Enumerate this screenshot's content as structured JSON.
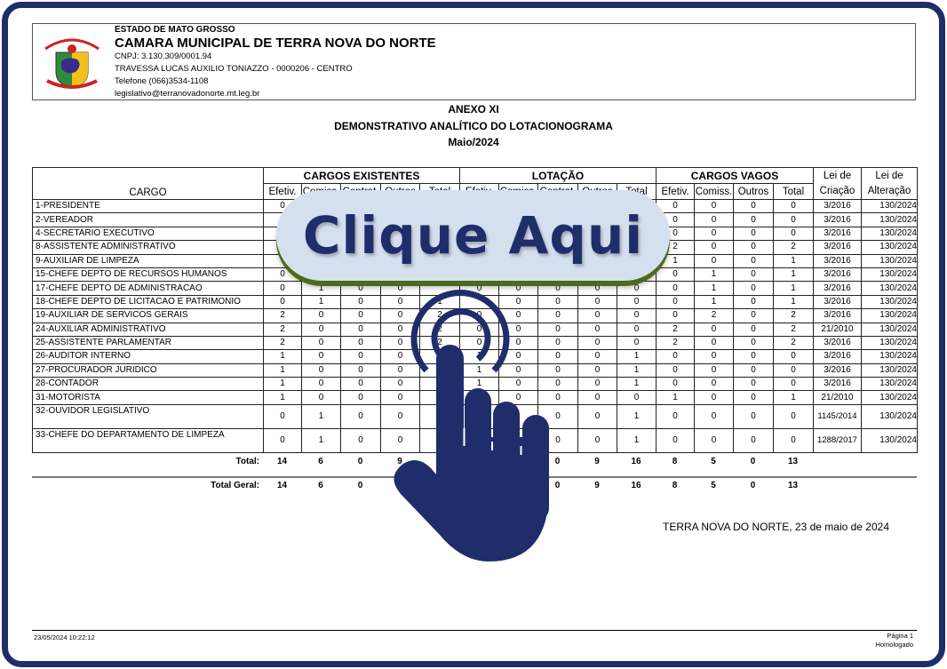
{
  "header": {
    "state": "ESTADO DE MATO GROSSO",
    "org": "CAMARA MUNICIPAL DE TERRA NOVA DO NORTE",
    "cnpj": "CNPJ:    3.130.309/0001.94",
    "address": "TRAVESSA LUCAS AUXILIO TONIAZZO - 0000206 - CENTRO",
    "phone": "Telefone     (066)3534-1108",
    "email": "legislativo@terranovadonorte.mt.leg.br"
  },
  "titles": {
    "annex": "ANEXO XI",
    "report": "DEMONSTRATIVO ANALÍTICO DO LOTACIONOGRAMA",
    "period": "Maio/2024"
  },
  "table": {
    "cargo_header": "CARGO",
    "groups": [
      "CARGOS EXISTENTES",
      "LOTAÇÃO",
      "CARGOS VAGOS"
    ],
    "lei_criacao": "Lei de Criação",
    "lei_alteracao": "Lei de Alteração",
    "sub_existentes": [
      "Efetiv.",
      "Comiss.",
      "Contrat.",
      "Outros",
      "Total"
    ],
    "sub_lotacao": [
      "Efetiv.",
      "Comiss.",
      "Contrat.",
      "Outros",
      "Total"
    ],
    "sub_vagos": [
      "Efetiv.",
      "Comiss.",
      "Outros",
      "Total"
    ],
    "rows": [
      {
        "cargo": "1-PRESIDENTE",
        "v": [
          "0",
          "",
          "",
          "",
          "",
          "",
          "",
          "",
          "",
          "",
          "0",
          "0",
          "0",
          "0",
          "3/2016",
          "130/2024"
        ]
      },
      {
        "cargo": "2-VEREADOR",
        "v": [
          "",
          "",
          "",
          "",
          "",
          "",
          "",
          "",
          "",
          "",
          "0",
          "0",
          "0",
          "0",
          "3/2016",
          "130/2024"
        ]
      },
      {
        "cargo": "4-SECRETARIO EXECUTIVO",
        "v": [
          "",
          "",
          "",
          "",
          "",
          "",
          "",
          "",
          "",
          "",
          "0",
          "0",
          "0",
          "0",
          "3/2016",
          "130/2024"
        ]
      },
      {
        "cargo": "8-ASSISTENTE  ADMINISTRATIVO",
        "v": [
          "",
          "",
          "",
          "",
          "",
          "",
          "",
          "",
          "",
          "",
          "2",
          "0",
          "0",
          "2",
          "3/2016",
          "130/2024"
        ]
      },
      {
        "cargo": "9-AUXILIAR DE LIMPEZA",
        "v": [
          "",
          "",
          "",
          "",
          "",
          "",
          "",
          "",
          "",
          "",
          "1",
          "0",
          "0",
          "1",
          "3/2016",
          "130/2024"
        ]
      },
      {
        "cargo": "15-CHEFE DEPTO DE RECURSOS HUMANOS",
        "v": [
          "0",
          "",
          "",
          "",
          "",
          "",
          "",
          "",
          "",
          "",
          "0",
          "1",
          "0",
          "1",
          "3/2016",
          "130/2024"
        ]
      },
      {
        "cargo": "17-CHEFE DEPTO DE ADMINISTRACAO",
        "v": [
          "0",
          "1",
          "0",
          "0",
          "",
          "0",
          "0",
          "0",
          "0",
          "0",
          "0",
          "1",
          "0",
          "1",
          "3/2016",
          "130/2024"
        ]
      },
      {
        "cargo": "18-CHEFE DEPTO DE LICITACAO E PATRIMONIO",
        "v": [
          "0",
          "1",
          "0",
          "0",
          "1",
          "",
          "0",
          "0",
          "0",
          "0",
          "0",
          "1",
          "0",
          "1",
          "3/2016",
          "130/2024"
        ]
      },
      {
        "cargo": "19-AUXILIAR DE SERVICOS GERAIS",
        "v": [
          "2",
          "0",
          "0",
          "0",
          "2",
          "0",
          "0",
          "0",
          "0",
          "0",
          "0",
          "2",
          "0",
          "2",
          "3/2016",
          "130/2024"
        ]
      },
      {
        "cargo": "24-AUXILIAR ADMINISTRATIVO",
        "v": [
          "2",
          "0",
          "0",
          "0",
          "2",
          "0",
          "0",
          "0",
          "0",
          "0",
          "2",
          "0",
          "0",
          "2",
          "21/2010",
          "130/2024"
        ]
      },
      {
        "cargo": "25-ASSISTENTE PARLAMENTAR",
        "v": [
          "2",
          "0",
          "0",
          "0",
          "2",
          "0",
          "0",
          "0",
          "0",
          "0",
          "2",
          "0",
          "0",
          "2",
          "3/2016",
          "130/2024"
        ]
      },
      {
        "cargo": "26-AUDITOR INTERNO",
        "v": [
          "1",
          "0",
          "0",
          "0",
          "",
          "1",
          "0",
          "0",
          "0",
          "1",
          "0",
          "0",
          "0",
          "0",
          "3/2016",
          "130/2024"
        ]
      },
      {
        "cargo": "27-PROCURADOR JURIDICO",
        "v": [
          "1",
          "0",
          "0",
          "0",
          "",
          "1",
          "0",
          "0",
          "0",
          "1",
          "0",
          "0",
          "0",
          "0",
          "3/2016",
          "130/2024"
        ]
      },
      {
        "cargo": "28-CONTADOR",
        "v": [
          "1",
          "0",
          "0",
          "0",
          "",
          "1",
          "0",
          "0",
          "0",
          "1",
          "0",
          "0",
          "0",
          "0",
          "3/2016",
          "130/2024"
        ]
      },
      {
        "cargo": "31-MOTORISTA",
        "v": [
          "1",
          "0",
          "0",
          "0",
          "",
          "",
          "0",
          "0",
          "0",
          "0",
          "1",
          "0",
          "0",
          "1",
          "21/2010",
          "130/2024"
        ]
      },
      {
        "cargo": "32-OUVIDOR LEGISLATIVO",
        "v": [
          "0",
          "1",
          "0",
          "0",
          "",
          "",
          "",
          "0",
          "0",
          "1",
          "0",
          "0",
          "0",
          "0",
          "1145/2014",
          "130/2024"
        ]
      },
      {
        "cargo": "33-CHEFE DO DEPARTAMENTO DE LIMPEZA",
        "v": [
          "0",
          "1",
          "0",
          "0",
          "",
          "",
          "",
          "0",
          "0",
          "1",
          "0",
          "0",
          "0",
          "0",
          "1288/2017",
          "130/2024"
        ]
      }
    ],
    "total_label": "Total:",
    "total": [
      "14",
      "6",
      "0",
      "9",
      "",
      "",
      "",
      "0",
      "9",
      "16",
      "8",
      "5",
      "0",
      "13"
    ],
    "total_geral_label": "Total Geral:",
    "total_geral": [
      "14",
      "6",
      "0",
      "",
      "",
      "",
      "",
      "0",
      "9",
      "16",
      "8",
      "5",
      "0",
      "13"
    ]
  },
  "place_date": "TERRA NOVA DO NORTE, 23 de maio de 2024",
  "footer": {
    "timestamp": "23/05/2024 10:22:12",
    "page": "Página 1",
    "status": "Homologado"
  },
  "overlay": {
    "button_label": "Clique Aqui",
    "icon": "hand-pointer-icon",
    "color": "#1f2d6b",
    "pill_color": "#d5e0ef"
  }
}
